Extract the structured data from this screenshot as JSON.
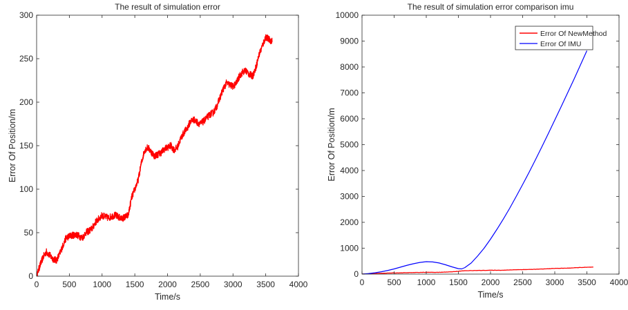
{
  "chart_data": [
    {
      "type": "line",
      "title": "The result of simulation error",
      "xlabel": "Time/s",
      "ylabel": "Error Of Position/m",
      "xlim": [
        0,
        4000
      ],
      "ylim": [
        0,
        300
      ],
      "xticks": [
        0,
        500,
        1000,
        1500,
        2000,
        2500,
        3000,
        3500,
        4000
      ],
      "yticks": [
        0,
        50,
        100,
        150,
        200,
        250,
        300
      ],
      "grid": false,
      "series": [
        {
          "color": "#ff0000",
          "noise": 8,
          "x": [
            0,
            50,
            100,
            150,
            200,
            250,
            300,
            350,
            400,
            450,
            500,
            550,
            600,
            650,
            700,
            750,
            800,
            850,
            900,
            950,
            1000,
            1050,
            1100,
            1150,
            1200,
            1250,
            1300,
            1350,
            1400,
            1450,
            1500,
            1550,
            1600,
            1650,
            1700,
            1750,
            1800,
            1850,
            1900,
            1950,
            2000,
            2050,
            2100,
            2150,
            2200,
            2250,
            2300,
            2350,
            2400,
            2450,
            2500,
            2550,
            2600,
            2650,
            2700,
            2750,
            2800,
            2850,
            2900,
            2950,
            3000,
            3050,
            3100,
            3150,
            3200,
            3250,
            3300,
            3350,
            3400,
            3450,
            3500,
            3550,
            3600
          ],
          "values": [
            0,
            12,
            22,
            28,
            24,
            20,
            18,
            25,
            35,
            44,
            46,
            47,
            48,
            46,
            44,
            50,
            52,
            55,
            62,
            66,
            70,
            68,
            67,
            69,
            70,
            68,
            66,
            68,
            70,
            90,
            100,
            110,
            130,
            145,
            148,
            143,
            138,
            140,
            142,
            146,
            148,
            150,
            145,
            148,
            158,
            165,
            170,
            178,
            180,
            177,
            175,
            178,
            182,
            186,
            188,
            195,
            205,
            215,
            222,
            220,
            218,
            222,
            230,
            235,
            236,
            232,
            230,
            240,
            255,
            265,
            275,
            272,
            270
          ]
        }
      ]
    },
    {
      "type": "line",
      "title": "The result of simulation error comparison imu",
      "xlabel": "Time/s",
      "ylabel": "Error Of Position/m",
      "xlim": [
        0,
        4000
      ],
      "ylim": [
        0,
        10000
      ],
      "xticks": [
        0,
        500,
        1000,
        1500,
        2000,
        2500,
        3000,
        3500,
        4000
      ],
      "yticks": [
        0,
        1000,
        2000,
        3000,
        4000,
        5000,
        6000,
        7000,
        8000,
        9000,
        10000
      ],
      "grid": false,
      "legend": "top-right",
      "series": [
        {
          "name": "Error Of NewMethod",
          "color": "#ff0000",
          "noise": 10,
          "x": [
            0,
            200,
            400,
            600,
            800,
            1000,
            1200,
            1400,
            1600,
            1800,
            2000,
            2200,
            2400,
            2600,
            2800,
            3000,
            3200,
            3400,
            3600
          ],
          "values": [
            0,
            20,
            40,
            48,
            60,
            70,
            68,
            90,
            130,
            140,
            148,
            150,
            170,
            178,
            195,
            220,
            230,
            255,
            270
          ]
        },
        {
          "name": "Error Of IMU",
          "color": "#0000ff",
          "noise": 0,
          "x": [
            0,
            100,
            200,
            300,
            400,
            500,
            600,
            700,
            800,
            900,
            1000,
            1100,
            1200,
            1300,
            1400,
            1500,
            1550,
            1600,
            1700,
            1800,
            1900,
            2000,
            2100,
            2200,
            2300,
            2400,
            2500,
            2600,
            2700,
            2800,
            2900,
            3000,
            3100,
            3200,
            3300,
            3400,
            3500
          ],
          "values": [
            0,
            20,
            50,
            90,
            140,
            200,
            270,
            340,
            400,
            450,
            480,
            470,
            430,
            360,
            280,
            210,
            200,
            250,
            430,
            700,
            1000,
            1350,
            1730,
            2130,
            2550,
            3000,
            3460,
            3930,
            4420,
            4920,
            5430,
            5950,
            6470,
            7000,
            7530,
            8080,
            8630
          ]
        }
      ]
    }
  ]
}
